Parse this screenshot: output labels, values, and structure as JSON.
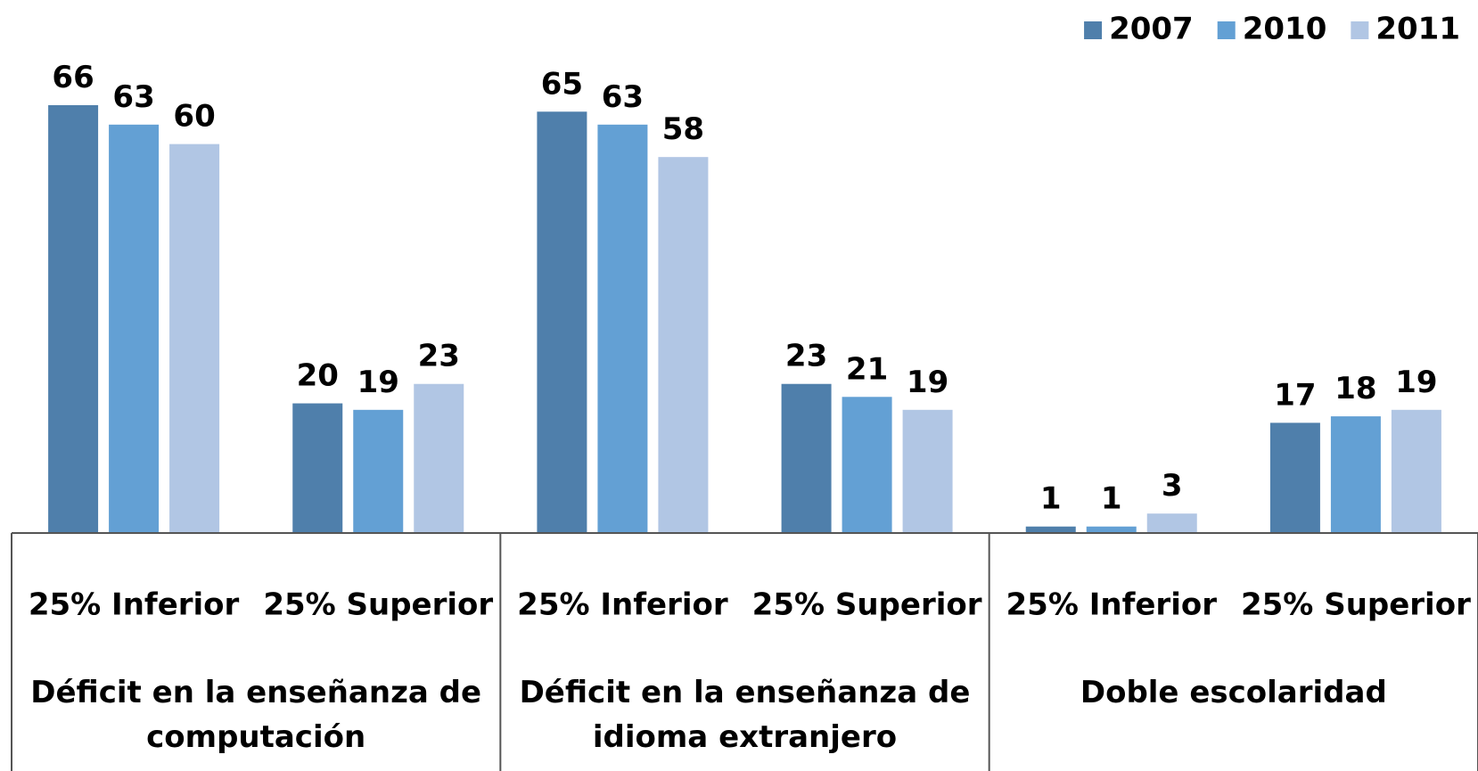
{
  "chart_data": {
    "type": "bar",
    "categories": [
      "25% Inferior",
      "25% Superior",
      "25% Inferior",
      "25% Superior",
      "25% Inferior",
      "25% Superior"
    ],
    "groups": [
      "Déficit en la enseñanza de computación",
      "Déficit en la enseñanza de idioma extranjero",
      "Doble escolaridad"
    ],
    "series": [
      {
        "name": "2007",
        "color": "#4f7fab",
        "values": [
          66,
          20,
          65,
          23,
          1,
          17
        ]
      },
      {
        "name": "2010",
        "color": "#63a0d4",
        "values": [
          63,
          19,
          63,
          21,
          1,
          18
        ]
      },
      {
        "name": "2011",
        "color": "#b1c6e4",
        "values": [
          60,
          23,
          58,
          19,
          3,
          19
        ]
      }
    ],
    "legend": "top-right"
  }
}
